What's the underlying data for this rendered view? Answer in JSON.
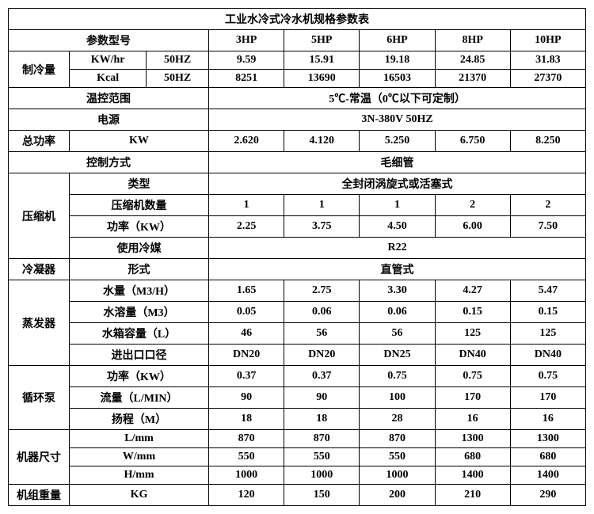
{
  "title": "工业水冷式冷水机规格参数表",
  "header_param": "参数型号",
  "models": [
    "3HP",
    "5HP",
    "6HP",
    "8HP",
    "10HP"
  ],
  "cooling": {
    "label": "制冷量",
    "rows": [
      {
        "unit": "KW/hr",
        "hz": "50HZ",
        "vals": [
          "9.59",
          "15.91",
          "19.18",
          "24.85",
          "31.83"
        ]
      },
      {
        "unit": "Kcal",
        "hz": "50HZ",
        "vals": [
          "8251",
          "13690",
          "16503",
          "21370",
          "27370"
        ]
      }
    ]
  },
  "temp_range": {
    "label": "温控范围",
    "value": "5℃-常温（0℃以下可定制）"
  },
  "power_supply": {
    "label": "电源",
    "value": "3N-380V 50HZ"
  },
  "total_power": {
    "label": "总功率",
    "unit": "KW",
    "vals": [
      "2.620",
      "4.120",
      "5.250",
      "6.750",
      "8.250"
    ]
  },
  "control": {
    "label": "控制方式",
    "value": "毛细管"
  },
  "compressor": {
    "label": "压缩机",
    "type_label": "类型",
    "type_value": "全封闭涡旋式或活塞式",
    "count_label": "压缩机数量",
    "count_vals": [
      "1",
      "1",
      "1",
      "2",
      "2"
    ],
    "power_label": "功率（KW）",
    "power_vals": [
      "2.25",
      "3.75",
      "4.50",
      "6.00",
      "7.50"
    ],
    "refrigerant_label": "使用冷媒",
    "refrigerant_value": "R22"
  },
  "condenser": {
    "label": "冷凝器",
    "form_label": "形式",
    "form_value": "直管式"
  },
  "evaporator": {
    "label": "蒸发器",
    "rows": [
      {
        "label": "水量（M3/H）",
        "vals": [
          "1.65",
          "2.75",
          "3.30",
          "4.27",
          "5.47"
        ]
      },
      {
        "label": "水溶量（M3）",
        "vals": [
          "0.05",
          "0.06",
          "0.06",
          "0.15",
          "0.15"
        ]
      },
      {
        "label": "水箱容量（L）",
        "vals": [
          "46",
          "56",
          "56",
          "125",
          "125"
        ]
      },
      {
        "label": "进出口口径",
        "vals": [
          "DN20",
          "DN20",
          "DN25",
          "DN40",
          "DN40"
        ]
      }
    ]
  },
  "pump": {
    "label": "循环泵",
    "rows": [
      {
        "label": "功率（KW）",
        "vals": [
          "0.37",
          "0.37",
          "0.75",
          "0.75",
          "0.75"
        ]
      },
      {
        "label": "流量（L/MIN）",
        "vals": [
          "90",
          "90",
          "100",
          "170",
          "170"
        ]
      },
      {
        "label": "扬程（M）",
        "vals": [
          "18",
          "18",
          "28",
          "16",
          "16"
        ]
      }
    ]
  },
  "size": {
    "label": "机器尺寸",
    "rows": [
      {
        "label": "L/mm",
        "vals": [
          "870",
          "870",
          "870",
          "1300",
          "1300"
        ]
      },
      {
        "label": "W/mm",
        "vals": [
          "550",
          "550",
          "550",
          "680",
          "680"
        ]
      },
      {
        "label": "H/mm",
        "vals": [
          "1000",
          "1000",
          "1000",
          "1400",
          "1400"
        ]
      }
    ]
  },
  "weight": {
    "label": "机组重量",
    "unit": "KG",
    "vals": [
      "120",
      "150",
      "200",
      "210",
      "290"
    ]
  }
}
